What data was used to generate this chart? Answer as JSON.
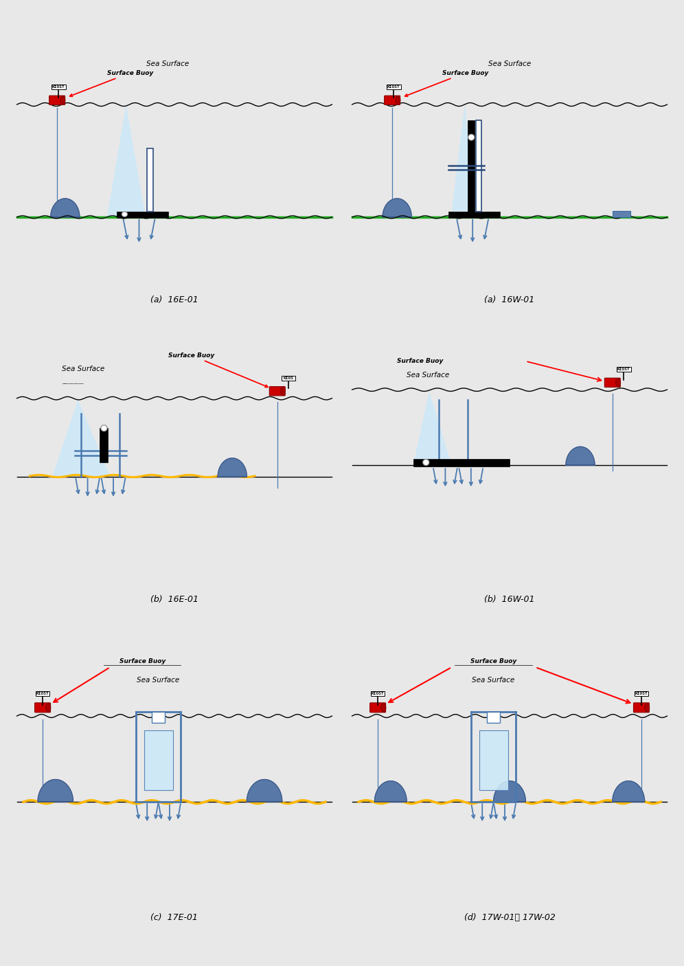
{
  "bg_color": "#e8e8e8",
  "panel_bg": "#ffffff",
  "buoy_color": "#cc0000",
  "instrument_color": "#2a4a7b",
  "anchor_color": "#4a7ab0",
  "light_beam_color": "#cce8f8",
  "mooring_line_color": "#4a7ab0",
  "cable_color": "#FFB800",
  "green_seafloor": "#22aa22",
  "panel_captions": [
    "(a)  16E-01",
    "(a)  16W-01",
    "(b)  16E-01",
    "(b)  16W-01",
    "(c)  17E-01",
    "(d)  17W-01와 17W-02"
  ]
}
